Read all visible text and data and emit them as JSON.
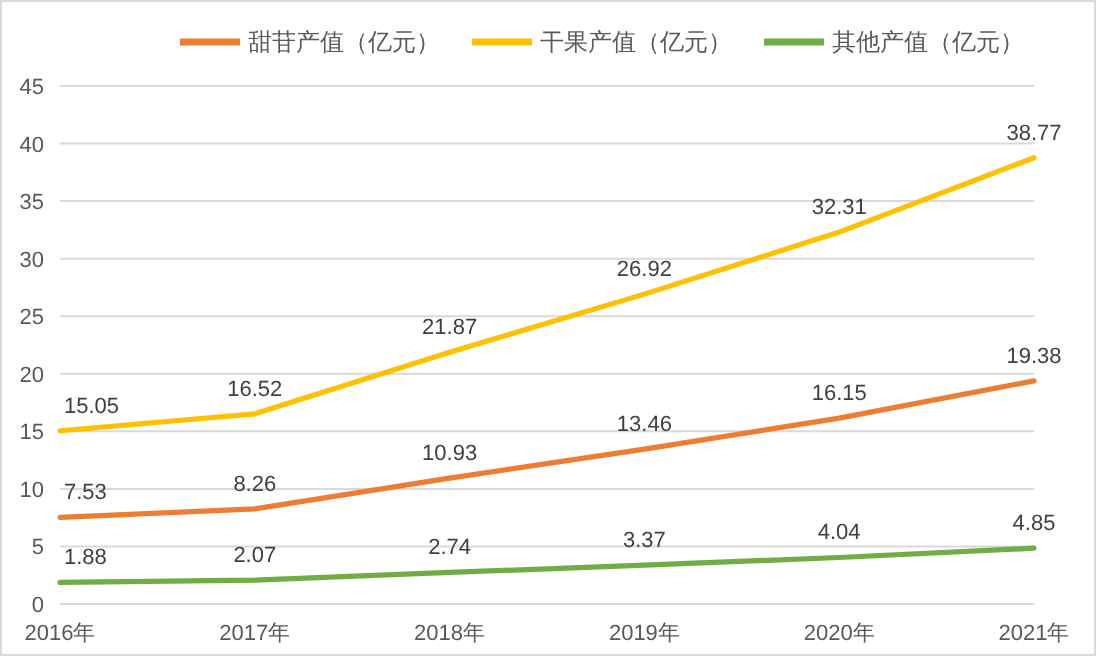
{
  "chart_data": {
    "type": "line",
    "categories": [
      "2016年",
      "2017年",
      "2018年",
      "2019年",
      "2020年",
      "2021年"
    ],
    "series": [
      {
        "name": "甜苷产值（亿元）",
        "color": "#ed7d31",
        "values": [
          7.53,
          8.26,
          10.93,
          13.46,
          16.15,
          19.38
        ]
      },
      {
        "name": "干果产值（亿元）",
        "color": "#ffc000",
        "values": [
          15.05,
          16.52,
          21.87,
          26.92,
          32.31,
          38.77
        ]
      },
      {
        "name": "其他产值（亿元）",
        "color": "#70ad47",
        "values": [
          1.88,
          2.07,
          2.74,
          3.37,
          4.04,
          4.85
        ]
      }
    ],
    "ylim": [
      0,
      45
    ],
    "yticks": [
      0,
      5,
      10,
      15,
      20,
      25,
      30,
      35,
      40,
      45
    ],
    "grid": "y",
    "legend": "top",
    "data_labels": true,
    "marker": "none",
    "line_style": "solid"
  }
}
